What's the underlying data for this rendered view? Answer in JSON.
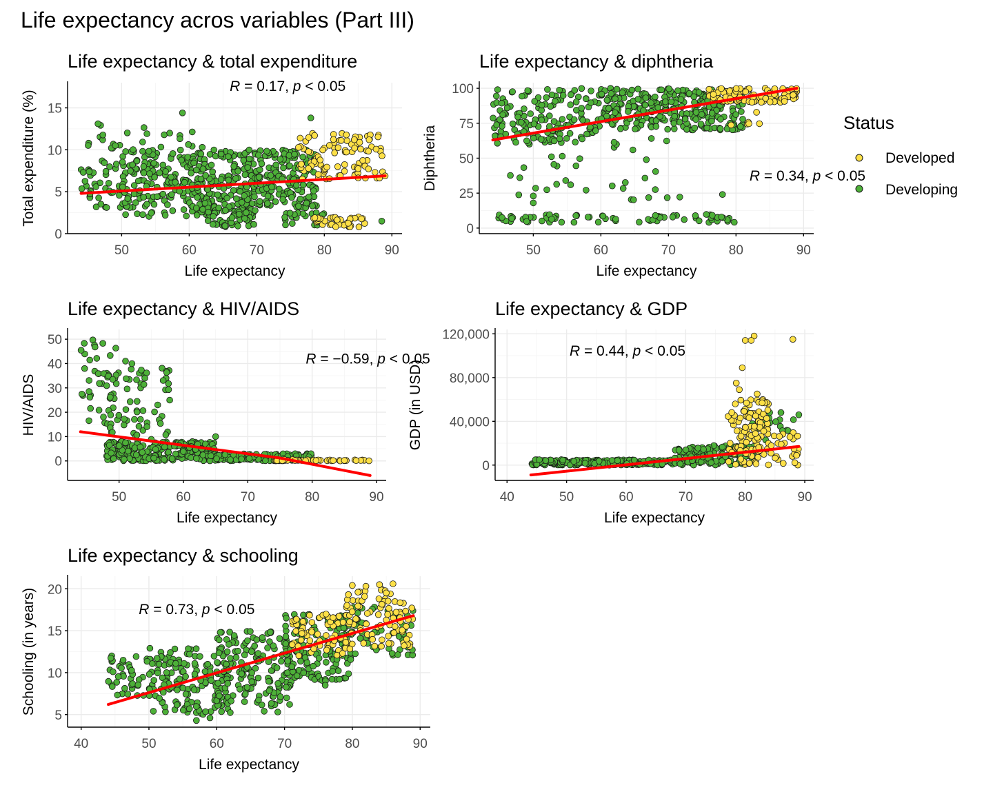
{
  "figure": {
    "title": "Life expectancy acros variables (Part III)"
  },
  "legend": {
    "title": "Status",
    "items": [
      {
        "label": "Developed",
        "color": "#fde047"
      },
      {
        "label": "Developing",
        "color": "#4db038"
      }
    ]
  },
  "colors": {
    "developed": "#fde047",
    "developing": "#4db038",
    "regression_line": "#ff0000",
    "point_outline": "#1a1a1a"
  },
  "chart_data": [
    {
      "type": "scatter",
      "title": "Life expectancy & total expenditure",
      "xlabel": "Life expectancy",
      "ylabel": "Total expenditure (%)",
      "xlim": [
        42,
        91.5
      ],
      "ylim": [
        0,
        18
      ],
      "xticks": [
        50,
        60,
        70,
        80,
        90
      ],
      "xtick_labels": [
        "50",
        "60",
        "70",
        "80",
        "90"
      ],
      "yticks": [
        0,
        5,
        10,
        15
      ],
      "ytick_labels": [
        "0",
        "5",
        "10",
        "15"
      ],
      "annotation": {
        "r_symbol": "R",
        "r_text": " = 0.17, ",
        "p_symbol": "p",
        "p_text": " < 0.05"
      },
      "annotation_pos": {
        "x": 66,
        "y": 17
      },
      "fit_line": [
        [
          44,
          4.8
        ],
        [
          89,
          6.9
        ]
      ],
      "series": [
        {
          "name": "Developing",
          "clusters": [
            {
              "x": [
                44,
                50
              ],
              "y": [
                3,
                9
              ],
              "n": 40
            },
            {
              "x": [
                50,
                60
              ],
              "y": [
                2,
                10
              ],
              "n": 150
            },
            {
              "x": [
                60,
                70
              ],
              "y": [
                2,
                10
              ],
              "n": 220
            },
            {
              "x": [
                70,
                79
              ],
              "y": [
                3,
                10
              ],
              "n": 160
            },
            {
              "x": [
                62,
                70
              ],
              "y": [
                0.8,
                3
              ],
              "n": 40
            },
            {
              "x": [
                45,
                62
              ],
              "y": [
                10,
                13
              ],
              "n": 25
            },
            {
              "x": [
                74,
                80
              ],
              "y": [
                1,
                2.5
              ],
              "n": 20
            }
          ],
          "points": [
            [
              46.5,
              13.1
            ],
            [
              59,
              14.4
            ],
            [
              78,
              13.8
            ],
            [
              88.5,
              1.5
            ],
            [
              84,
              1.8
            ]
          ]
        },
        {
          "name": "Developed",
          "clusters": [
            {
              "x": [
                76,
                89
              ],
              "y": [
                6.5,
                12
              ],
              "n": 100
            },
            {
              "x": [
                78,
                86
              ],
              "y": [
                0.8,
                2
              ],
              "n": 45
            }
          ],
          "points": []
        }
      ]
    },
    {
      "type": "scatter",
      "title": "Life expectancy & diphtheria",
      "xlabel": "Life expectancy",
      "ylabel": "Diphtheria",
      "xlim": [
        42,
        91.5
      ],
      "ylim": [
        -4,
        104
      ],
      "xticks": [
        50,
        60,
        70,
        80,
        90
      ],
      "xtick_labels": [
        "50",
        "60",
        "70",
        "80",
        "90"
      ],
      "yticks": [
        0,
        25,
        50,
        75,
        100
      ],
      "ytick_labels": [
        "0",
        "25",
        "50",
        "75",
        "100"
      ],
      "annotation": {
        "r_symbol": "R",
        "r_text": " = 0.34, ",
        "p_symbol": "p",
        "p_text": " < 0.05"
      },
      "annotation_pos": {
        "x": 82,
        "y": 34
      },
      "fit_line": [
        [
          44,
          63
        ],
        [
          89,
          100
        ]
      ],
      "series": [
        {
          "name": "Developing",
          "clusters": [
            {
              "x": [
                44,
                60
              ],
              "y": [
                60,
                100
              ],
              "n": 150
            },
            {
              "x": [
                60,
                81
              ],
              "y": [
                70,
                100
              ],
              "n": 300
            },
            {
              "x": [
                44,
                80
              ],
              "y": [
                4,
                10
              ],
              "n": 70
            },
            {
              "x": [
                46,
                72
              ],
              "y": [
                20,
                65
              ],
              "n": 35
            }
          ],
          "points": [
            [
              78,
              24
            ],
            [
              50,
              23
            ],
            [
              50,
              18
            ],
            [
              48,
              36
            ]
          ]
        },
        {
          "name": "Developed",
          "clusters": [
            {
              "x": [
                76,
                89
              ],
              "y": [
                90,
                100
              ],
              "n": 110
            },
            {
              "x": [
                78,
                85
              ],
              "y": [
                73,
                88
              ],
              "n": 6
            }
          ],
          "points": []
        }
      ]
    },
    {
      "type": "scatter",
      "title": "Life expectancy & HIV/AIDS",
      "xlabel": "Life expectancy",
      "ylabel": "HIV/AIDS",
      "xlim": [
        42,
        91.5
      ],
      "ylim": [
        -8,
        54
      ],
      "xticks": [
        50,
        60,
        70,
        80,
        90
      ],
      "xtick_labels": [
        "50",
        "60",
        "70",
        "80",
        "90"
      ],
      "yticks": [
        0,
        10,
        20,
        30,
        40,
        50
      ],
      "ytick_labels": [
        "0",
        "10",
        "20",
        "30",
        "40",
        "50"
      ],
      "annotation": {
        "r_symbol": "R",
        "r_text": " = −0.59, ",
        "p_symbol": "p",
        "p_text": " < 0.05"
      },
      "annotation_pos": {
        "x": 79,
        "y": 40
      },
      "fit_line": [
        [
          44,
          12
        ],
        [
          75,
          1.2
        ],
        [
          89,
          -6
        ]
      ],
      "series": [
        {
          "name": "Developing",
          "clusters": [
            {
              "x": [
                44,
                50
              ],
              "y": [
                15,
                50
              ],
              "n": 45
            },
            {
              "x": [
                48,
                58
              ],
              "y": [
                5,
                40
              ],
              "n": 60
            },
            {
              "x": [
                48,
                65
              ],
              "y": [
                0,
                8
              ],
              "n": 220
            },
            {
              "x": [
                64,
                80
              ],
              "y": [
                0,
                3
              ],
              "n": 150
            }
          ],
          "points": [
            [
              51,
              41
            ],
            [
              52,
              40
            ],
            [
              54,
              34
            ],
            [
              56,
              23
            ],
            [
              65,
              10
            ]
          ]
        },
        {
          "name": "Developed",
          "clusters": [
            {
              "x": [
                74,
                89
              ],
              "y": [
                0,
                0.6
              ],
              "n": 45
            }
          ],
          "points": []
        }
      ]
    },
    {
      "type": "scatter",
      "title": "Life expectancy & GDP",
      "xlabel": "Life expectancy",
      "ylabel": "GDP (in USD)",
      "xlim": [
        38,
        91.5
      ],
      "ylim": [
        -14000,
        124000
      ],
      "xticks": [
        40,
        50,
        60,
        70,
        80,
        90
      ],
      "xtick_labels": [
        "40",
        "50",
        "60",
        "70",
        "80",
        "90"
      ],
      "yticks": [
        0,
        40000,
        80000,
        120000
      ],
      "ytick_labels": [
        "0",
        "40,000",
        "80,000",
        "120,000"
      ],
      "annotation": {
        "r_symbol": "R",
        "r_text": " = 0.44, ",
        "p_symbol": "p",
        "p_text": " < 0.05"
      },
      "annotation_pos": {
        "x": 50.5,
        "y": 100000
      },
      "fit_line": [
        [
          44,
          -9000
        ],
        [
          89,
          17000
        ]
      ],
      "series": [
        {
          "name": "Developing",
          "clusters": [
            {
              "x": [
                44,
                70
              ],
              "y": [
                0,
                5000
              ],
              "n": 240
            },
            {
              "x": [
                68,
                82
              ],
              "y": [
                0,
                18000
              ],
              "n": 130
            },
            {
              "x": [
                80,
                89
              ],
              "y": [
                20000,
                50000
              ],
              "n": 18
            }
          ],
          "points": [
            [
              89,
              46000
            ],
            [
              86,
              48000
            ],
            [
              84,
              43000
            ],
            [
              82,
              44000
            ]
          ]
        },
        {
          "name": "Developed",
          "clusters": [
            {
              "x": [
                77,
                84
              ],
              "y": [
                0,
                60000
              ],
              "n": 120
            },
            {
              "x": [
                84,
                89
              ],
              "y": [
                0,
                30000
              ],
              "n": 25
            }
          ],
          "points": [
            [
              80,
              114000
            ],
            [
              81.5,
              118000
            ],
            [
              81,
              114000
            ],
            [
              88,
              115000
            ],
            [
              79.5,
              89000
            ],
            [
              78.5,
              75000
            ],
            [
              79,
              69000
            ],
            [
              82,
              65000
            ]
          ]
        }
      ]
    },
    {
      "type": "scatter",
      "title": "Life expectancy & schooling",
      "xlabel": "Life expectancy",
      "ylabel": "Schooling (in years)",
      "xlim": [
        38,
        91.5
      ],
      "ylim": [
        3.5,
        21.5
      ],
      "xticks": [
        40,
        50,
        60,
        70,
        80,
        90
      ],
      "xtick_labels": [
        "40",
        "50",
        "60",
        "70",
        "80",
        "90"
      ],
      "yticks": [
        5,
        10,
        15,
        20
      ],
      "ytick_labels": [
        "5",
        "10",
        "15",
        "20"
      ],
      "annotation": {
        "r_symbol": "R",
        "r_text": " = 0.73, ",
        "p_symbol": "p",
        "p_text": " < 0.05"
      },
      "annotation_pos": {
        "x": 48.5,
        "y": 17
      },
      "fit_line": [
        [
          44,
          6.2
        ],
        [
          89,
          16.8
        ]
      ],
      "series": [
        {
          "name": "Developing",
          "clusters": [
            {
              "x": [
                44,
                55
              ],
              "y": [
                7,
                12
              ],
              "n": 70
            },
            {
              "x": [
                50,
                62
              ],
              "y": [
                5,
                13
              ],
              "n": 120
            },
            {
              "x": [
                60,
                71
              ],
              "y": [
                6,
                15
              ],
              "n": 160
            },
            {
              "x": [
                70,
                80
              ],
              "y": [
                9,
                17
              ],
              "n": 150
            },
            {
              "x": [
                78,
                89
              ],
              "y": [
                12,
                18
              ],
              "n": 60
            }
          ],
          "points": [
            [
              57,
              4.3
            ],
            [
              59,
              4.6
            ],
            [
              67,
              5.4
            ],
            [
              69,
              5.3
            ],
            [
              76,
              8.5
            ],
            [
              77,
              9.2
            ]
          ]
        },
        {
          "name": "Developed",
          "clusters": [
            {
              "x": [
                71,
                80
              ],
              "y": [
                12,
                17
              ],
              "n": 70
            },
            {
              "x": [
                79,
                89
              ],
              "y": [
                13,
                20
              ],
              "n": 80
            }
          ],
          "points": [
            [
              86,
              20.6
            ],
            [
              84,
              20.5
            ],
            [
              80,
              20.4
            ],
            [
              82,
              20.3
            ],
            [
              85,
              19.5
            ],
            [
              88,
              14
            ]
          ]
        }
      ]
    }
  ]
}
